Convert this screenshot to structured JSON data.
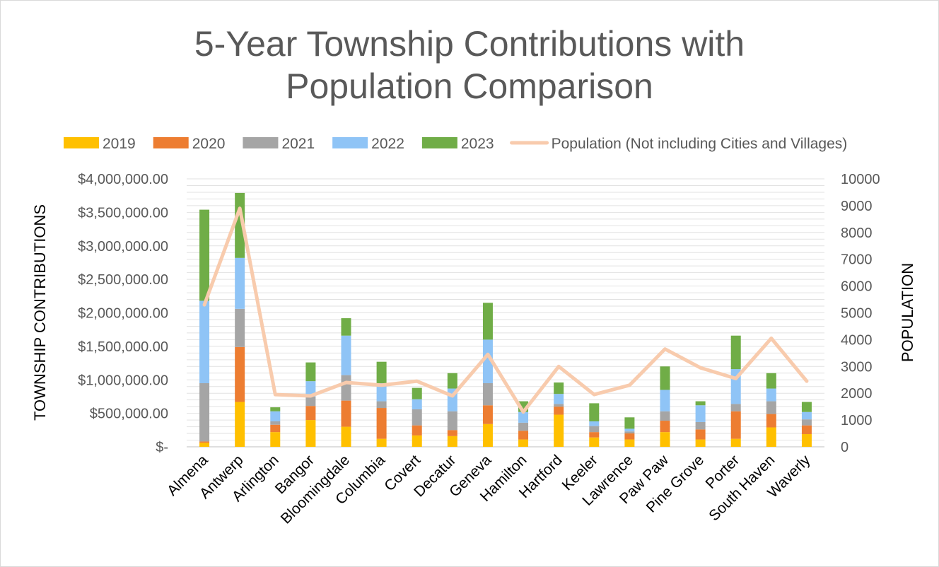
{
  "chart_data": {
    "type": "bar",
    "stacked": true,
    "title_line1": "5-Year Township Contributions with",
    "title_line2": "Population Comparison",
    "ylabel": "TOWNSHIP CONTRIBUTIONS",
    "y2label": "POPULATION",
    "ylim": [
      0,
      4000000
    ],
    "y2lim": [
      0,
      10000
    ],
    "yticks": [
      "$-",
      "$500,000.00",
      "$1,000,000.00",
      "$1,500,000.00",
      "$2,000,000.00",
      "$2,500,000.00",
      "$3,000,000.00",
      "$3,500,000.00",
      "$4,000,000.00"
    ],
    "y2ticks": [
      "0",
      "1000",
      "2000",
      "3000",
      "4000",
      "5000",
      "6000",
      "7000",
      "8000",
      "9000",
      "10000"
    ],
    "grid": true,
    "legend_position": "top",
    "categories": [
      "Almena",
      "Antwerp",
      "Arlington",
      "Bangor",
      "Bloomingdale",
      "Columbia",
      "Covert",
      "Decatur",
      "Geneva",
      "Hamilton",
      "Hartford",
      "Keeler",
      "Lawrence",
      "Paw Paw",
      "Pine Grove",
      "Porter",
      "South Haven",
      "Waverly"
    ],
    "series": [
      {
        "name": "2019",
        "color": "#ffc000",
        "values": [
          60000,
          670000,
          220000,
          400000,
          300000,
          120000,
          170000,
          160000,
          340000,
          110000,
          480000,
          140000,
          110000,
          220000,
          110000,
          120000,
          290000,
          190000
        ]
      },
      {
        "name": "2020",
        "color": "#ed7d31",
        "values": [
          20000,
          820000,
          110000,
          210000,
          390000,
          460000,
          150000,
          90000,
          280000,
          130000,
          120000,
          80000,
          90000,
          170000,
          150000,
          410000,
          200000,
          130000
        ]
      },
      {
        "name": "2021",
        "color": "#a5a5a5",
        "values": [
          870000,
          570000,
          50000,
          140000,
          380000,
          100000,
          240000,
          280000,
          330000,
          120000,
          40000,
          90000,
          30000,
          140000,
          110000,
          110000,
          190000,
          90000
        ]
      },
      {
        "name": "2022",
        "color": "#8fc4f6",
        "values": [
          1230000,
          760000,
          150000,
          230000,
          590000,
          270000,
          150000,
          340000,
          650000,
          160000,
          150000,
          70000,
          40000,
          320000,
          250000,
          520000,
          190000,
          110000
        ]
      },
      {
        "name": "2023",
        "color": "#70ad47",
        "values": [
          1360000,
          970000,
          60000,
          280000,
          260000,
          320000,
          170000,
          230000,
          550000,
          160000,
          170000,
          270000,
          170000,
          350000,
          60000,
          500000,
          230000,
          150000
        ]
      }
    ],
    "line_series": {
      "name": "Population (Not including Cities and Villages)",
      "color": "#f8cbad",
      "axis": "secondary",
      "values": [
        5300,
        8900,
        1950,
        1900,
        2400,
        2300,
        2450,
        1900,
        3450,
        1300,
        3000,
        1950,
        2300,
        3650,
        2950,
        2550,
        4050,
        2450
      ]
    }
  }
}
